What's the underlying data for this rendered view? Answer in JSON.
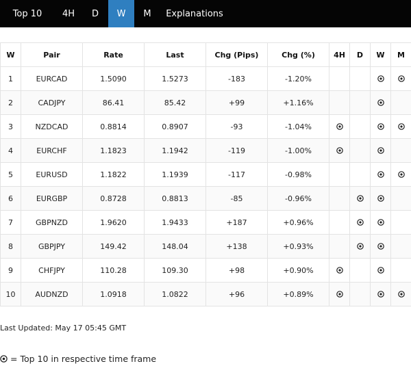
{
  "nav": {
    "tabs": [
      {
        "label": "Top 10",
        "active": false
      },
      {
        "label": "4H",
        "active": false
      },
      {
        "label": "D",
        "active": false
      },
      {
        "label": "W",
        "active": true
      },
      {
        "label": "M",
        "active": false
      },
      {
        "label": "Explanations",
        "active": false
      }
    ]
  },
  "table": {
    "headers": [
      "W",
      "Pair",
      "Rate",
      "Last",
      "Chg (Pips)",
      "Chg (%)",
      "4H",
      "D",
      "W",
      "M"
    ],
    "rows": [
      {
        "rank": "1",
        "pair": "EURCAD",
        "rate": "1.5090",
        "last": "1.5273",
        "chg_pips": "-183",
        "chg_pct": "-1.20%",
        "h4": false,
        "d": false,
        "w": true,
        "m": true
      },
      {
        "rank": "2",
        "pair": "CADJPY",
        "rate": "86.41",
        "last": "85.42",
        "chg_pips": "+99",
        "chg_pct": "+1.16%",
        "h4": false,
        "d": false,
        "w": true,
        "m": false
      },
      {
        "rank": "3",
        "pair": "NZDCAD",
        "rate": "0.8814",
        "last": "0.8907",
        "chg_pips": "-93",
        "chg_pct": "-1.04%",
        "h4": true,
        "d": false,
        "w": true,
        "m": true
      },
      {
        "rank": "4",
        "pair": "EURCHF",
        "rate": "1.1823",
        "last": "1.1942",
        "chg_pips": "-119",
        "chg_pct": "-1.00%",
        "h4": true,
        "d": false,
        "w": true,
        "m": false
      },
      {
        "rank": "5",
        "pair": "EURUSD",
        "rate": "1.1822",
        "last": "1.1939",
        "chg_pips": "-117",
        "chg_pct": "-0.98%",
        "h4": false,
        "d": false,
        "w": true,
        "m": true
      },
      {
        "rank": "6",
        "pair": "EURGBP",
        "rate": "0.8728",
        "last": "0.8813",
        "chg_pips": "-85",
        "chg_pct": "-0.96%",
        "h4": false,
        "d": true,
        "w": true,
        "m": false
      },
      {
        "rank": "7",
        "pair": "GBPNZD",
        "rate": "1.9620",
        "last": "1.9433",
        "chg_pips": "+187",
        "chg_pct": "+0.96%",
        "h4": false,
        "d": true,
        "w": true,
        "m": false
      },
      {
        "rank": "8",
        "pair": "GBPJPY",
        "rate": "149.42",
        "last": "148.04",
        "chg_pips": "+138",
        "chg_pct": "+0.93%",
        "h4": false,
        "d": true,
        "w": true,
        "m": false
      },
      {
        "rank": "9",
        "pair": "CHFJPY",
        "rate": "110.28",
        "last": "109.30",
        "chg_pips": "+98",
        "chg_pct": "+0.90%",
        "h4": true,
        "d": false,
        "w": true,
        "m": false
      },
      {
        "rank": "10",
        "pair": "AUDNZD",
        "rate": "1.0918",
        "last": "1.0822",
        "chg_pips": "+96",
        "chg_pct": "+0.89%",
        "h4": true,
        "d": false,
        "w": true,
        "m": true
      }
    ]
  },
  "footer": {
    "last_updated": "Last Updated: May 17 05:45 GMT",
    "legend_text": "= Top 10 in respective time frame",
    "mark_icon": "circled-dot-icon"
  },
  "colors": {
    "nav_bg": "#050505",
    "active_tab": "#2f7fc0"
  }
}
